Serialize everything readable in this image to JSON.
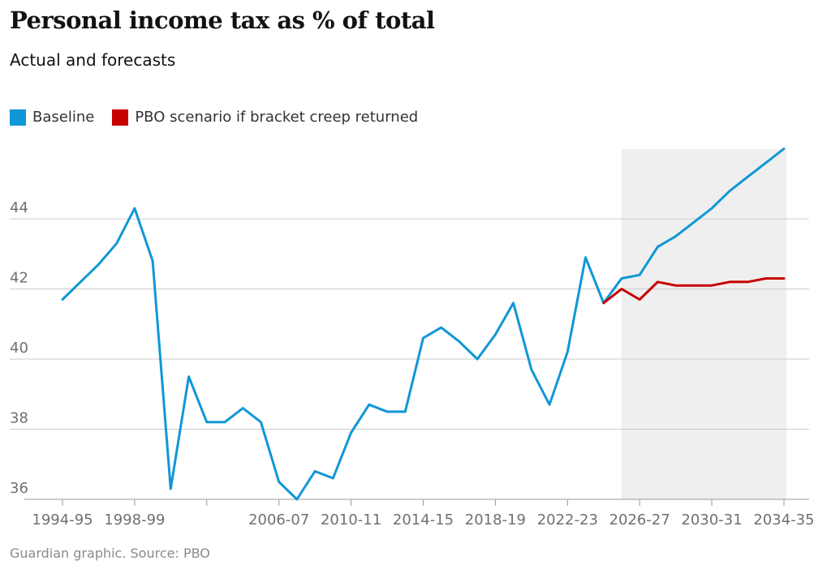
{
  "colors": {
    "baseline": "#1097d6",
    "pbo": "#c70000",
    "forecast_shade": "#efefef",
    "grid": "#cccccc",
    "axis": "#999999"
  },
  "chart_data": {
    "type": "line",
    "title": "Personal income tax as % of total",
    "subtitle": "Actual and forecasts",
    "source": "Guardian graphic. Source: PBO",
    "xlabel": "",
    "ylabel": "",
    "ylim": [
      36,
      46
    ],
    "yticks": [
      36,
      38,
      40,
      42,
      44
    ],
    "x_start_year": 1994,
    "x_end_year": 2034,
    "xtick_years": [
      1994,
      1998,
      2002,
      2006,
      2010,
      2014,
      2018,
      2022,
      2026,
      2030,
      2034
    ],
    "xtick_labels": [
      "1994-95",
      "1998-99",
      "",
      "2006-07",
      "2010-11",
      "2014-15",
      "2018-19",
      "2022-23",
      "2026-27",
      "2030-31",
      "2034-35"
    ],
    "forecast_start_year": 2025,
    "series": [
      {
        "name": "Baseline",
        "key": "baseline",
        "x": [
          1994,
          1995,
          1996,
          1997,
          1998,
          1999,
          2000,
          2001,
          2002,
          2003,
          2004,
          2005,
          2006,
          2007,
          2008,
          2009,
          2010,
          2011,
          2012,
          2013,
          2014,
          2015,
          2016,
          2017,
          2018,
          2019,
          2020,
          2021,
          2022,
          2023,
          2024,
          2025,
          2026,
          2027,
          2028,
          2029,
          2030,
          2031,
          2032,
          2033,
          2034
        ],
        "values": [
          41.7,
          42.2,
          42.7,
          43.3,
          44.3,
          42.8,
          36.3,
          39.5,
          38.2,
          38.2,
          38.6,
          38.2,
          36.5,
          36.0,
          36.8,
          36.6,
          37.9,
          38.7,
          38.5,
          38.5,
          40.6,
          40.9,
          40.5,
          40.0,
          40.7,
          41.6,
          39.7,
          38.7,
          40.2,
          42.9,
          41.6,
          42.3,
          42.4,
          43.2,
          43.5,
          43.9,
          44.3,
          44.8,
          45.2,
          45.6,
          46.0
        ]
      },
      {
        "name": "PBO scenario if bracket creep returned",
        "key": "pbo",
        "x": [
          2024,
          2025,
          2026,
          2027,
          2028,
          2029,
          2030,
          2031,
          2032,
          2033,
          2034
        ],
        "values": [
          41.6,
          42.0,
          41.7,
          42.2,
          42.1,
          42.1,
          42.1,
          42.2,
          42.2,
          42.3,
          42.3
        ]
      }
    ]
  }
}
